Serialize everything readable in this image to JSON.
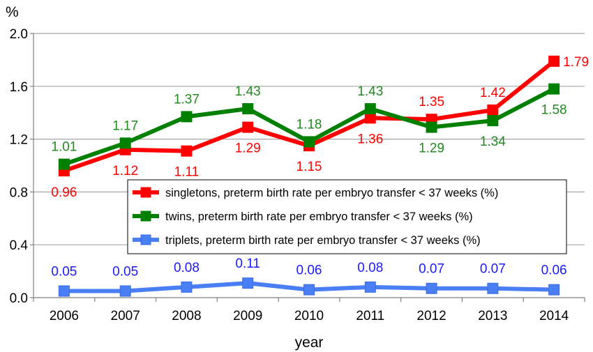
{
  "chart_data": {
    "type": "line",
    "title": "",
    "xlabel": "year",
    "ylabel": "%",
    "ylim": [
      0.0,
      2.0
    ],
    "yticks": [
      "0.0",
      "0.4",
      "0.8",
      "1.2",
      "1.6",
      "2.0"
    ],
    "categories": [
      "2006",
      "2007",
      "2008",
      "2009",
      "2010",
      "2011",
      "2012",
      "2013",
      "2014"
    ],
    "grid": "horizontal",
    "legend_position": "center",
    "series": [
      {
        "name": "singletons, preterm birth rate per embryo transfer < 37 weeks (%)",
        "color": "#ff0000",
        "label_color": "#ff0000",
        "values": [
          0.96,
          1.12,
          1.11,
          1.29,
          1.15,
          1.36,
          1.35,
          1.42,
          1.79
        ],
        "labels": [
          "0.96",
          "1.12",
          "1.11",
          "1.29",
          "1.15",
          "1.36",
          "1.35",
          "1.42",
          "1.79"
        ]
      },
      {
        "name": "twins, preterm birth rate per embryo transfer < 37 weeks (%)",
        "color": "#008000",
        "label_color": "#218a21",
        "values": [
          1.01,
          1.17,
          1.37,
          1.43,
          1.18,
          1.43,
          1.29,
          1.34,
          1.58
        ],
        "labels": [
          "1.01",
          "1.17",
          "1.37",
          "1.43",
          "1.18",
          "1.43",
          "1.29",
          "1.34",
          "1.58"
        ]
      },
      {
        "name": "triplets, preterm birth rate per embryo transfer < 37 weeks (%)",
        "color": "#4a7ef5",
        "label_color": "#1a1aff",
        "values": [
          0.05,
          0.05,
          0.08,
          0.11,
          0.06,
          0.08,
          0.07,
          0.07,
          0.06
        ],
        "labels": [
          "0.05",
          "0.05",
          "0.08",
          "0.11",
          "0.06",
          "0.08",
          "0.07",
          "0.07",
          "0.06"
        ]
      }
    ]
  }
}
